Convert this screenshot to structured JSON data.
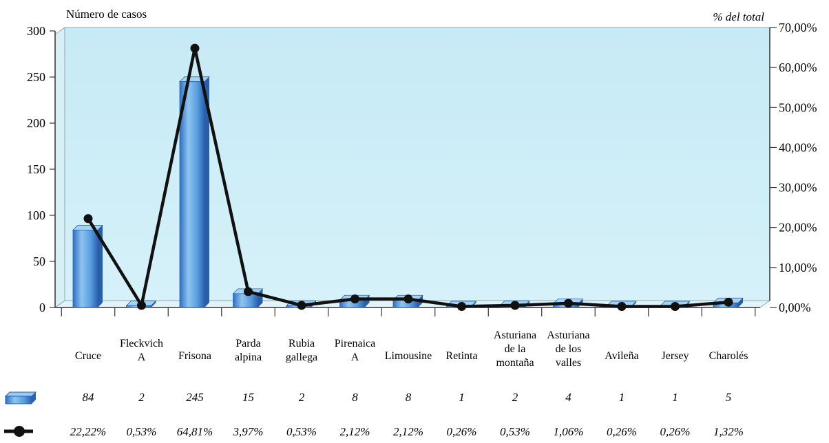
{
  "chart_data": {
    "type": "bar",
    "title": "",
    "ylabel_left": "Número de casos",
    "ylabel_right": "% del total",
    "categories": [
      [
        "Cruce"
      ],
      [
        "Fleckvich",
        "A"
      ],
      [
        "Frisona"
      ],
      [
        "Parda",
        "alpina"
      ],
      [
        "Rubia",
        "gallega"
      ],
      [
        "Pirenaica",
        "A"
      ],
      [
        "Limousine"
      ],
      [
        "Retinta"
      ],
      [
        "Asturiana",
        "de la",
        "montaña"
      ],
      [
        "Asturiana",
        "de los",
        "valles"
      ],
      [
        "Avileña"
      ],
      [
        "Jersey"
      ],
      [
        "Charolés"
      ]
    ],
    "series": [
      {
        "type": "bar",
        "axis": "left",
        "values": [
          84,
          2,
          245,
          15,
          2,
          8,
          8,
          1,
          2,
          4,
          1,
          1,
          5
        ],
        "labels": [
          "84",
          "2",
          "245",
          "15",
          "2",
          "8",
          "8",
          "1",
          "2",
          "4",
          "1",
          "1",
          "5"
        ],
        "color": "#5aa0de"
      },
      {
        "type": "line",
        "axis": "right",
        "values": [
          22.22,
          0.53,
          64.81,
          3.97,
          0.53,
          2.12,
          2.12,
          0.26,
          0.53,
          1.06,
          0.26,
          0.26,
          1.32
        ],
        "labels": [
          "22,22%",
          "0,53%",
          "64,81%",
          "3,97%",
          "0,53%",
          "2,12%",
          "2,12%",
          "0,26%",
          "0,53%",
          "1,06%",
          "0,26%",
          "0,26%",
          "1,32%"
        ],
        "color": "#111111"
      }
    ],
    "y_left": {
      "min": 0,
      "max": 300,
      "ticks": [
        "0",
        "50",
        "100",
        "150",
        "200",
        "250",
        "300"
      ]
    },
    "y_right": {
      "min": 0,
      "max": 70,
      "ticks": [
        "0,00%",
        "10,00%",
        "20,00%",
        "30,00%",
        "40,00%",
        "50,00%",
        "60,00%",
        "70,00%"
      ]
    },
    "background_color": "#c9ecf6",
    "grid": false,
    "legend": "left-of-data-table"
  }
}
